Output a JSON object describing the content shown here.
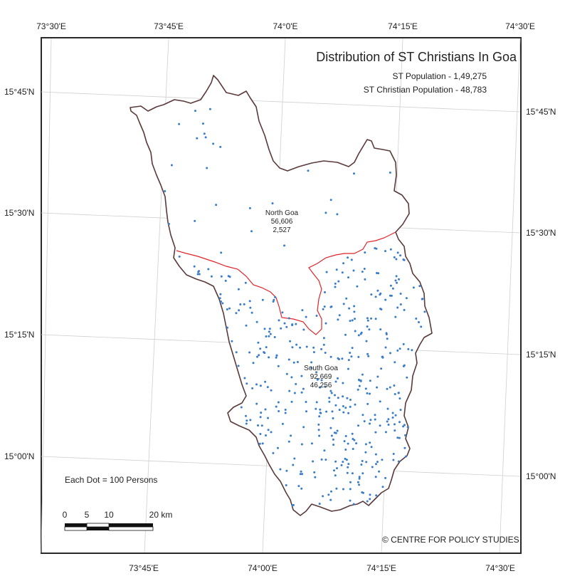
{
  "map": {
    "title": "Distribution of ST Christians In Goa",
    "st_population": "ST Population - 1,49,275",
    "st_christian_population": "ST Christian Population - 48,783",
    "graticule_top": [
      "73°30'E",
      "73°45'E",
      "74°0'E",
      "74°15'E",
      "74°30'E"
    ],
    "graticule_bottom": [
      "73°45'E",
      "74°00'E",
      "74°15'E",
      "74°30'E"
    ],
    "graticule_left": [
      "15°45'N",
      "15°30'N",
      "15°15'N",
      "15°00'N"
    ],
    "graticule_right": [
      "15°45'N",
      "15°30'N",
      "15°15'N",
      "15°00'N"
    ],
    "districts": [
      {
        "name": "North Goa",
        "total": "56,606",
        "christian": "2,527"
      },
      {
        "name": "South Goa",
        "total": "92,669",
        "christian": "46,256"
      }
    ],
    "dot_legend": "Each Dot = 100 Persons",
    "scale": {
      "labels": [
        "0",
        "5",
        "10",
        "20 km"
      ]
    },
    "credit": "© CENTRE FOR POLICY STUDIES",
    "colors": {
      "dots": "#3a7cc7",
      "district_border": "#e0242a",
      "state_border": "#5a3a3a",
      "graticule": "#cfcfcf"
    }
  }
}
